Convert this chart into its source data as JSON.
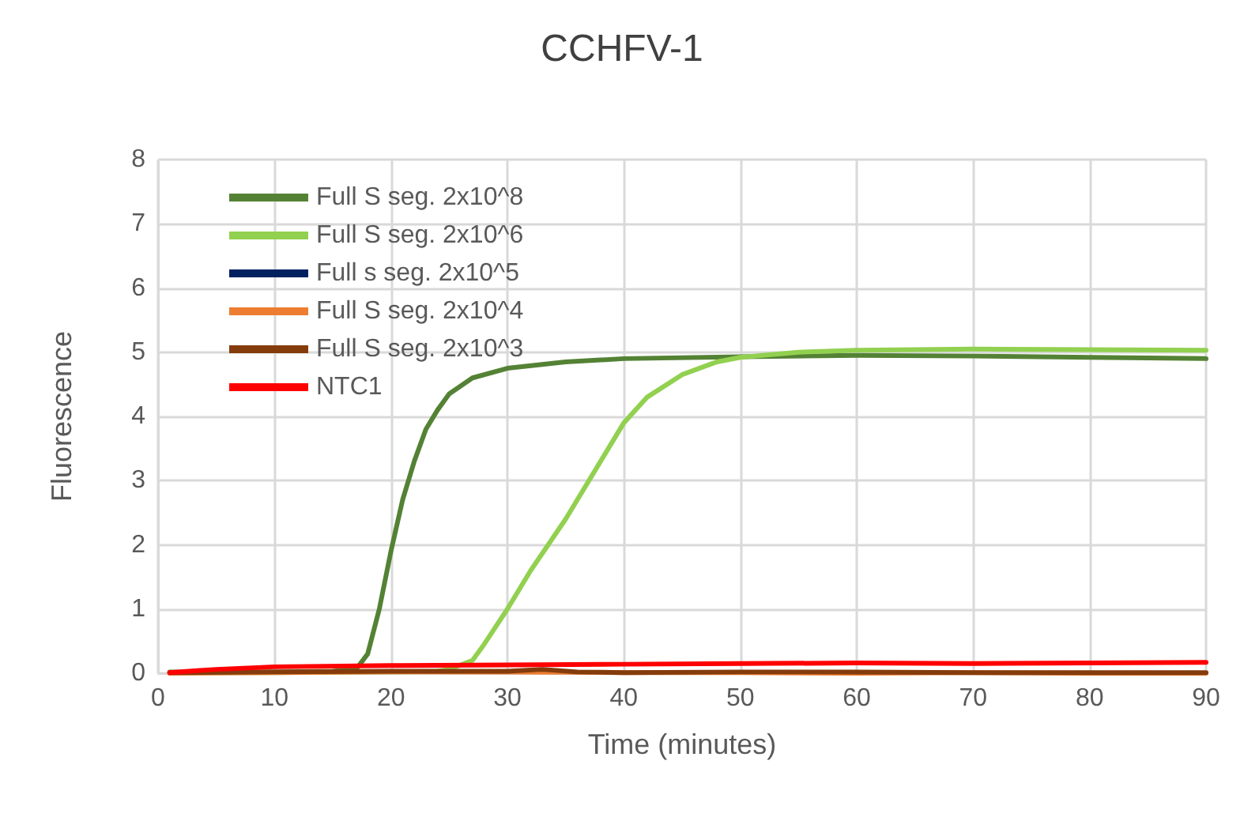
{
  "chart_data": {
    "type": "line",
    "title": "CCHFV-1",
    "xlabel": "Time (minutes)",
    "ylabel": "Fluorescence",
    "xlim": [
      0,
      90
    ],
    "xticks": [
      0,
      10,
      20,
      30,
      40,
      50,
      60,
      70,
      80,
      90
    ],
    "ylim": [
      0,
      8
    ],
    "yticks": [
      0,
      1,
      2,
      3,
      4,
      5,
      6,
      7,
      8
    ],
    "grid": true,
    "legend": "top left",
    "marker": "none",
    "line_style": "solid",
    "series": [
      {
        "name": "Full S seg. 2x10^8",
        "color": "#548235",
        "x": [
          1,
          5,
          10,
          15,
          17,
          18,
          19,
          20,
          21,
          22,
          23,
          24,
          25,
          27,
          30,
          35,
          40,
          50,
          60,
          70,
          80,
          90
        ],
        "values": [
          0.02,
          0.02,
          0.02,
          0.03,
          0.06,
          0.3,
          1.0,
          1.9,
          2.7,
          3.3,
          3.8,
          4.1,
          4.35,
          4.6,
          4.75,
          4.85,
          4.9,
          4.93,
          4.95,
          4.94,
          4.92,
          4.9
        ]
      },
      {
        "name": "Full S seg. 2x10^6",
        "color": "#92d050",
        "x": [
          1,
          10,
          20,
          24,
          25,
          27,
          28,
          30,
          32,
          35,
          38,
          40,
          42,
          45,
          48,
          50,
          55,
          60,
          70,
          80,
          90
        ],
        "values": [
          0.01,
          0.01,
          0.02,
          0.03,
          0.06,
          0.2,
          0.45,
          1.0,
          1.6,
          2.4,
          3.3,
          3.9,
          4.3,
          4.65,
          4.85,
          4.92,
          5.0,
          5.03,
          5.05,
          5.04,
          5.03
        ]
      },
      {
        "name": "Full s seg. 2x10^5",
        "color": "#002060",
        "values": [
          null
        ]
      },
      {
        "name": "Full S seg. 2x10^4",
        "color": "#ed7d31",
        "x": [
          1,
          10,
          20,
          30,
          40,
          50,
          60,
          70,
          80,
          90
        ],
        "values": [
          0.0,
          0.01,
          0.02,
          0.02,
          0.01,
          0.01,
          0.0,
          0.01,
          0.0,
          0.0
        ]
      },
      {
        "name": "Full S seg. 2x10^3",
        "color": "#843c0c",
        "x": [
          1,
          10,
          20,
          30,
          33,
          36,
          40,
          50,
          60,
          70,
          80,
          90
        ],
        "values": [
          0.01,
          0.02,
          0.03,
          0.03,
          0.06,
          0.02,
          0.01,
          0.02,
          0.02,
          0.01,
          0.01,
          0.01
        ]
      },
      {
        "name": "NTC1",
        "color": "#ff0000",
        "x": [
          1,
          5,
          10,
          20,
          30,
          40,
          50,
          60,
          70,
          80,
          90
        ],
        "values": [
          0.01,
          0.06,
          0.1,
          0.12,
          0.13,
          0.14,
          0.15,
          0.16,
          0.15,
          0.16,
          0.17
        ]
      }
    ]
  }
}
